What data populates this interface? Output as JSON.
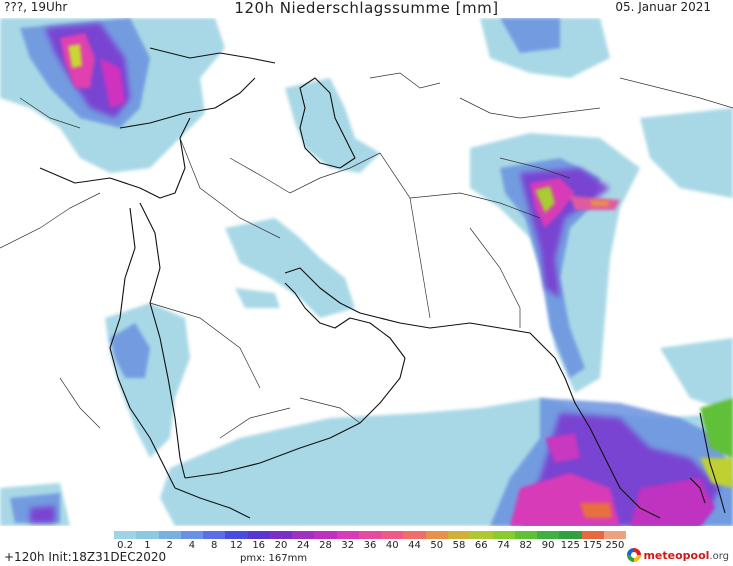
{
  "header": {
    "left": "???, 19Uhr",
    "title": "120h Niederschlagssumme [mm]",
    "right": "05. Januar 2021"
  },
  "legend": {
    "labels": [
      "0.2",
      "1",
      "2",
      "4",
      "8",
      "12",
      "16",
      "20",
      "24",
      "28",
      "32",
      "36",
      "40",
      "44",
      "50",
      "58",
      "66",
      "74",
      "82",
      "90",
      "125",
      "175",
      "250"
    ],
    "colors": [
      "#9fd3e8",
      "#8cc8e0",
      "#7ab0e0",
      "#6a90e8",
      "#5a6ee8",
      "#4a4ce0",
      "#5a36d0",
      "#7a30c8",
      "#a030c0",
      "#c030c0",
      "#d83ab8",
      "#e84aa0",
      "#f05888",
      "#f06e6a",
      "#e8904a",
      "#d0b038",
      "#b0c830",
      "#88cc30",
      "#60c038",
      "#40b040",
      "#30a040",
      "#e86840",
      "#f0a080"
    ]
  },
  "footer": {
    "forecast": "+120h Init:18Z31DEC2020",
    "pmx": "pmx: 167mm",
    "logo_main": "meteopool",
    "logo_domain": ".org"
  }
}
